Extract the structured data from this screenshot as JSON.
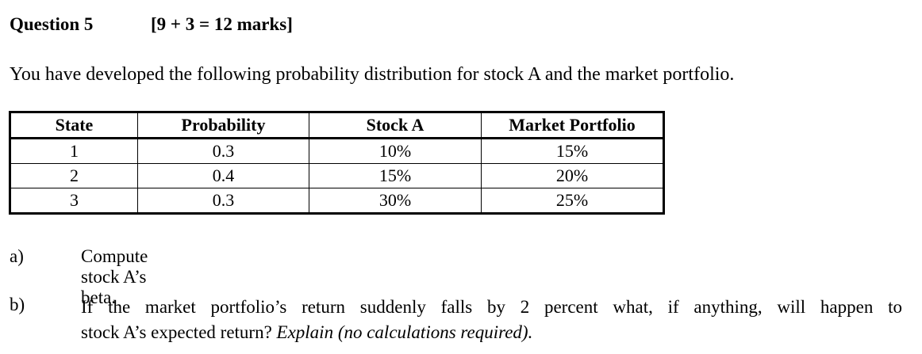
{
  "question": {
    "title": "Question 5",
    "marks": "[9 + 3 = 12 marks]"
  },
  "intro": "You have developed the following probability distribution for stock A and the market portfolio.",
  "table": {
    "headers": [
      "State",
      "Probability",
      "Stock A",
      "Market Portfolio"
    ],
    "rows": [
      [
        "1",
        "0.3",
        "10%",
        "15%"
      ],
      [
        "2",
        "0.4",
        "15%",
        "20%"
      ],
      [
        "3",
        "0.3",
        "30%",
        "25%"
      ]
    ]
  },
  "parts": {
    "a": {
      "label": "a)",
      "text": "Compute stock A’s beta."
    },
    "b": {
      "label": "b)",
      "text_line1": "If the market portfolio’s return suddenly falls by 2 percent what, if anything, will happen to",
      "text_line2": "stock A’s expected return?",
      "text_italic": "Explain (no calculations required)."
    }
  }
}
